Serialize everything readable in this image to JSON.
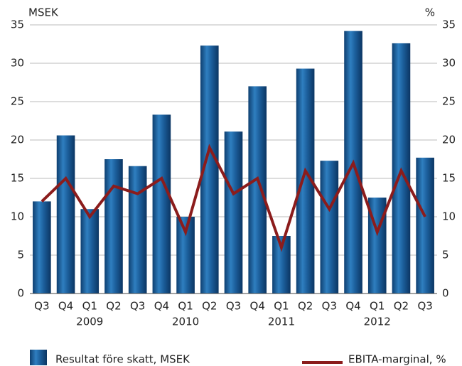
{
  "chart_data": {
    "type": "bar_line",
    "y_label": "MSEK",
    "y2_label": "%",
    "categories": [
      "Q3",
      "Q4",
      "Q1",
      "Q2",
      "Q3",
      "Q4",
      "Q1",
      "Q2",
      "Q3",
      "Q4",
      "Q1",
      "Q2",
      "Q3",
      "Q4",
      "Q1",
      "Q2",
      "Q3"
    ],
    "category_groups": [
      null,
      null,
      "2009",
      null,
      null,
      null,
      "2010",
      null,
      null,
      null,
      "2011",
      null,
      null,
      null,
      "2012",
      null,
      null
    ],
    "series": [
      {
        "name": "Resultat före skatt, MSEK",
        "type": "bar",
        "color": "#1c5f9c",
        "values": [
          12,
          20.6,
          11,
          17.5,
          16.6,
          23.3,
          10,
          32.3,
          21.1,
          27,
          7.5,
          29.3,
          17.3,
          34.2,
          12.5,
          32.6,
          17.7
        ]
      },
      {
        "name": "EBITA-marginal, %",
        "type": "line",
        "axis": "y2",
        "color": "#8b1c1c",
        "values": [
          12,
          15,
          10,
          14,
          13,
          15,
          8,
          19,
          13,
          15,
          6,
          16,
          11,
          17,
          8,
          16,
          10
        ]
      }
    ],
    "ylim": [
      0,
      35
    ],
    "yticks": [
      0,
      5,
      10,
      15,
      20,
      25,
      30,
      35
    ],
    "y2lim": [
      0,
      35
    ],
    "y2ticks": [
      0,
      5,
      10,
      15,
      20,
      25,
      30,
      35
    ],
    "grid": true
  }
}
